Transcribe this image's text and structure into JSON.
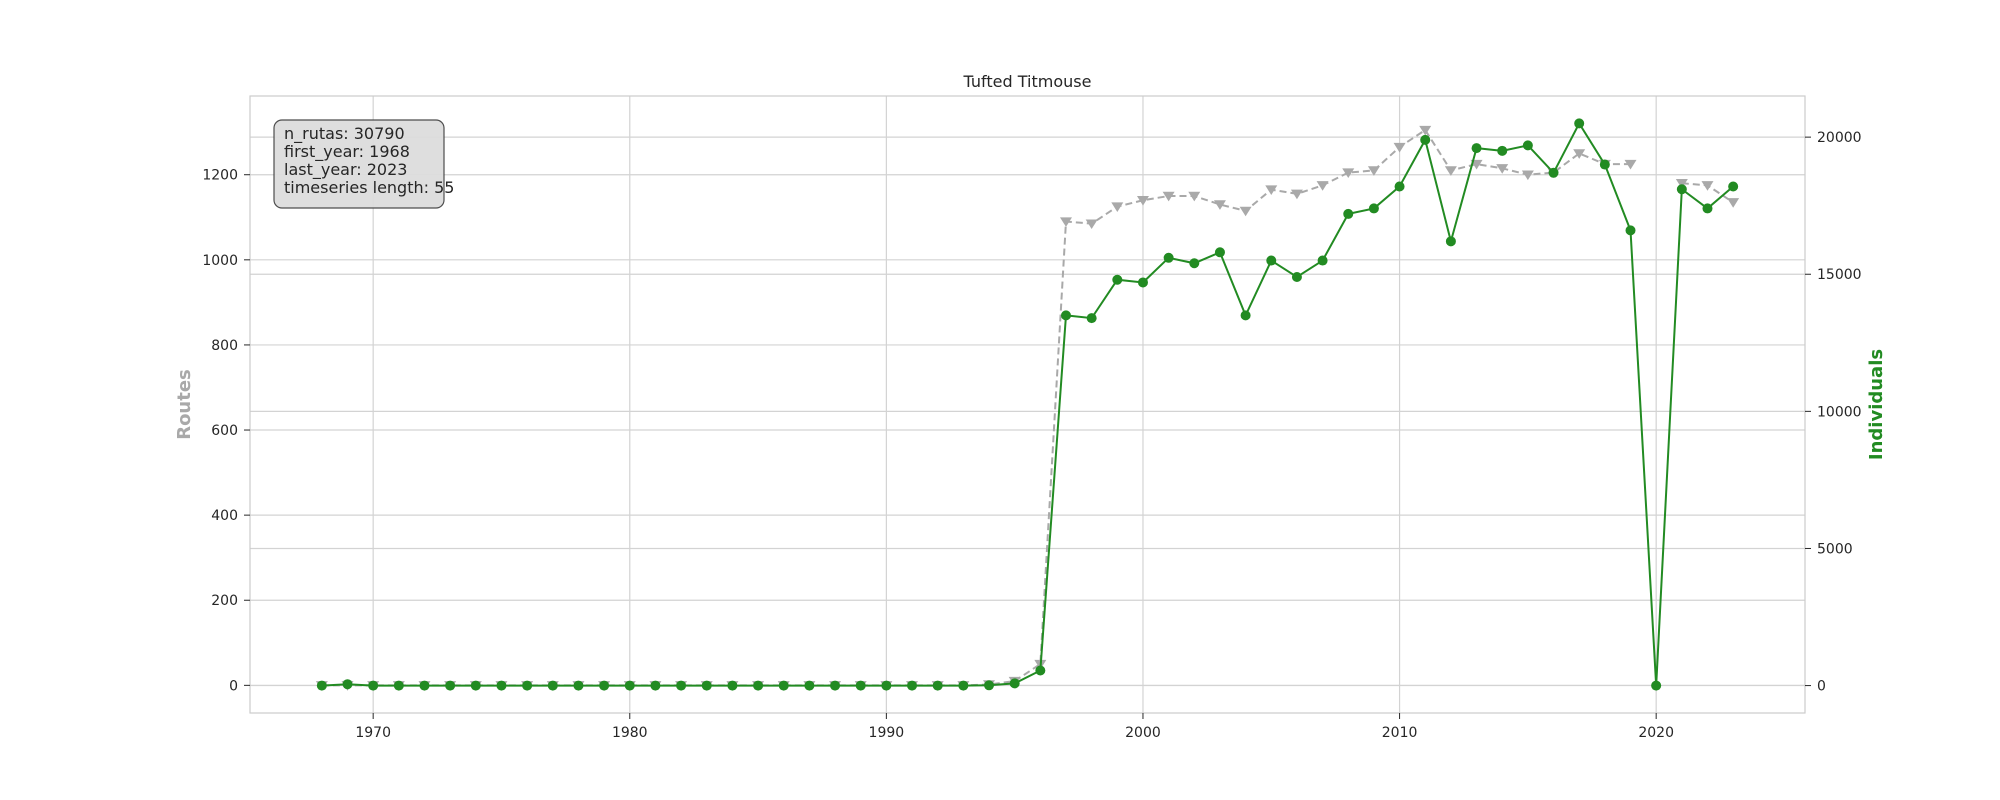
{
  "chart_data": {
    "type": "line",
    "title": "Tufted Titmouse",
    "xlabel": "",
    "ylabel_left": "Routes",
    "ylabel_right": "Individuals",
    "xlim": [
      1965.2,
      2025.8
    ],
    "xticks": [
      1970,
      1980,
      1990,
      2000,
      2010,
      2020
    ],
    "ylim_left": [
      -65,
      1385
    ],
    "yticks_left": [
      0,
      200,
      400,
      600,
      800,
      1000,
      1200
    ],
    "ylim_right": [
      -1000,
      21500
    ],
    "yticks_right": [
      0,
      5000,
      10000,
      15000,
      20000
    ],
    "grid": true,
    "x": [
      1968,
      1969,
      1970,
      1971,
      1972,
      1973,
      1974,
      1975,
      1976,
      1977,
      1978,
      1979,
      1980,
      1981,
      1982,
      1983,
      1984,
      1985,
      1986,
      1987,
      1988,
      1989,
      1990,
      1991,
      1992,
      1993,
      1994,
      1995,
      1996,
      1997,
      1998,
      1999,
      2000,
      2001,
      2002,
      2003,
      2004,
      2005,
      2006,
      2007,
      2008,
      2009,
      2010,
      2011,
      2012,
      2013,
      2014,
      2015,
      2016,
      2017,
      2018,
      2019,
      2020,
      2021,
      2022,
      2023
    ],
    "series": [
      {
        "name": "Routes",
        "axis": "left",
        "color": "#a9a9a9",
        "marker": "triangle-down",
        "linestyle": "dashed",
        "values": [
          0,
          0,
          0,
          0,
          0,
          0,
          0,
          0,
          0,
          0,
          0,
          0,
          0,
          0,
          0,
          0,
          0,
          0,
          0,
          0,
          0,
          0,
          0,
          0,
          0,
          0,
          2,
          10,
          50,
          1090,
          1085,
          1125,
          1140,
          1150,
          1150,
          1130,
          1115,
          1165,
          1155,
          1175,
          1205,
          1210,
          1265,
          1305,
          1210,
          1225,
          1215,
          1200,
          1205,
          1250,
          1225,
          1225,
          null,
          1180,
          1175,
          1135
        ]
      },
      {
        "name": "Individuals",
        "axis": "right",
        "color": "#228b22",
        "marker": "circle",
        "linestyle": "solid",
        "values": [
          0,
          50,
          0,
          0,
          0,
          0,
          0,
          0,
          0,
          0,
          0,
          0,
          0,
          0,
          0,
          0,
          0,
          0,
          0,
          0,
          0,
          0,
          0,
          0,
          0,
          0,
          10,
          80,
          550,
          13500,
          13400,
          14800,
          14700,
          15600,
          15400,
          15800,
          13500,
          15500,
          14900,
          15500,
          17200,
          17400,
          18200,
          19900,
          16200,
          19600,
          19500,
          19700,
          18700,
          20500,
          19000,
          16600,
          0,
          18100,
          17400,
          18200
        ]
      }
    ],
    "info_box": {
      "lines": [
        "n_rutas: 30790",
        "first_year: 1968",
        "last_year: 2023",
        "timeseries length: 55"
      ],
      "placement": "top-left"
    }
  }
}
